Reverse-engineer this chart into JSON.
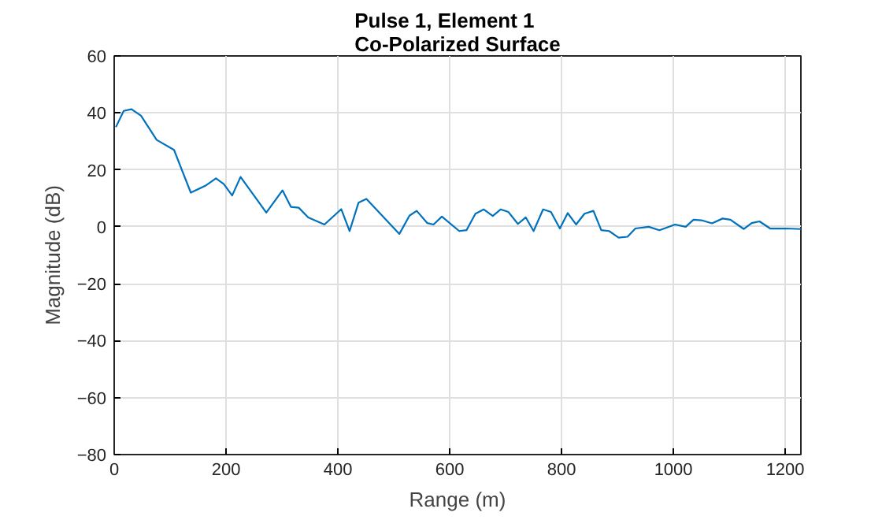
{
  "chart_data": {
    "type": "line",
    "title": "Pulse 1, Element 1\nCo-Polarized Surface",
    "xlabel": "Range (m)",
    "ylabel": "Magnitude (dB)",
    "xlim": [
      0,
      1228
    ],
    "ylim": [
      -80,
      60
    ],
    "xticks": [
      0,
      200,
      400,
      600,
      800,
      1000,
      1200
    ],
    "yticks": [
      -80,
      -60,
      -40,
      -20,
      0,
      20,
      40,
      60
    ],
    "grid": true,
    "series": [
      {
        "color": "#0072bd",
        "x": [
          3,
          17,
          31,
          48,
          76,
          107,
          121,
          137,
          163,
          182,
          196,
          211,
          226,
          272,
          301,
          316,
          330,
          347,
          376,
          406,
          421,
          437,
          451,
          510,
          528,
          541,
          560,
          571,
          586,
          617,
          630,
          646,
          661,
          677,
          691,
          705,
          722,
          736,
          750,
          767,
          781,
          797,
          811,
          826,
          841,
          857,
          871,
          885,
          902,
          918,
          932,
          956,
          975,
          1003,
          1022,
          1036,
          1050,
          1069,
          1088,
          1102,
          1126,
          1140,
          1154,
          1173,
          1202,
          1228
        ],
        "values": [
          35,
          40.7,
          41.3,
          39,
          30.5,
          27,
          20,
          12,
          14.4,
          17,
          15,
          11,
          17.5,
          5,
          12.8,
          7,
          6.7,
          3.3,
          0.8,
          6.2,
          -1.5,
          8.5,
          9.8,
          -2.5,
          3.9,
          5.6,
          1.3,
          0.8,
          3.6,
          -1.5,
          -1.2,
          4.6,
          6.1,
          3.8,
          6.1,
          5.2,
          1,
          3.3,
          -1.5,
          6.1,
          5.2,
          -0.6,
          4.8,
          0.8,
          4.6,
          5.6,
          -1.2,
          -1.5,
          -3.8,
          -3.5,
          -0.6,
          0,
          -1.2,
          0.8,
          0,
          2.5,
          2.3,
          1.2,
          2.9,
          2.5,
          -0.8,
          1.3,
          1.9,
          -0.6,
          -0.6,
          -0.8
        ]
      }
    ]
  }
}
